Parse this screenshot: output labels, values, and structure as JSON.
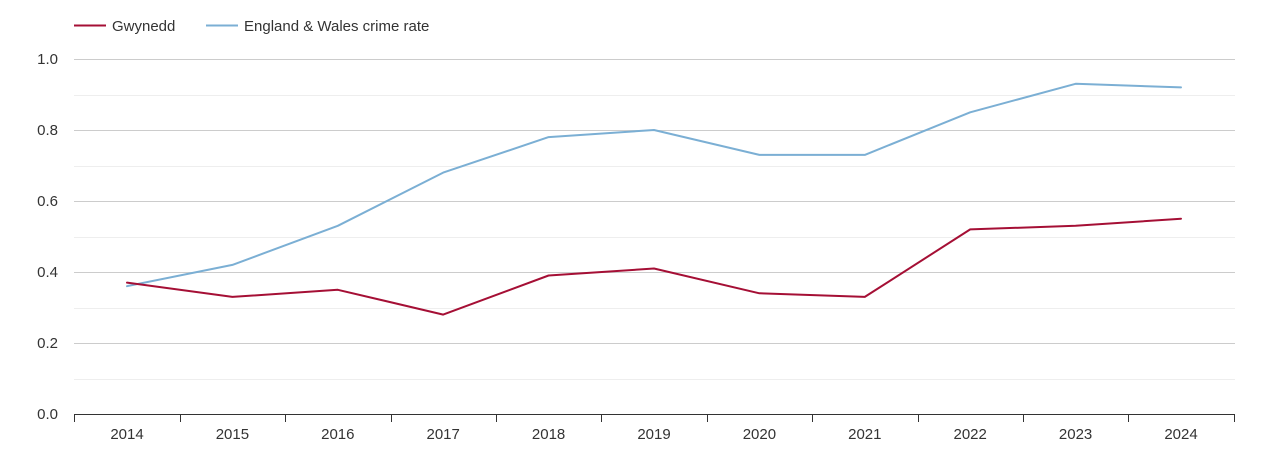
{
  "chart_data": {
    "type": "line",
    "title": "",
    "xlabel": "",
    "ylabel": "",
    "x": [
      "2014",
      "2015",
      "2016",
      "2017",
      "2018",
      "2019",
      "2020",
      "2021",
      "2022",
      "2023",
      "2024"
    ],
    "ylim": [
      0,
      1.0
    ],
    "yticks": [
      "0.0",
      "0.2",
      "0.4",
      "0.6",
      "0.8",
      "1.0"
    ],
    "grid": true,
    "legend_position": "top-left",
    "series": [
      {
        "name": "Gwynedd",
        "color": "#a50f35",
        "values": [
          0.37,
          0.33,
          0.35,
          0.28,
          0.39,
          0.41,
          0.34,
          0.33,
          0.52,
          0.53,
          0.55
        ]
      },
      {
        "name": "England & Wales crime rate",
        "color": "#7bafd4",
        "values": [
          0.36,
          0.42,
          0.53,
          0.68,
          0.78,
          0.8,
          0.73,
          0.73,
          0.85,
          0.93,
          0.92
        ]
      }
    ]
  }
}
